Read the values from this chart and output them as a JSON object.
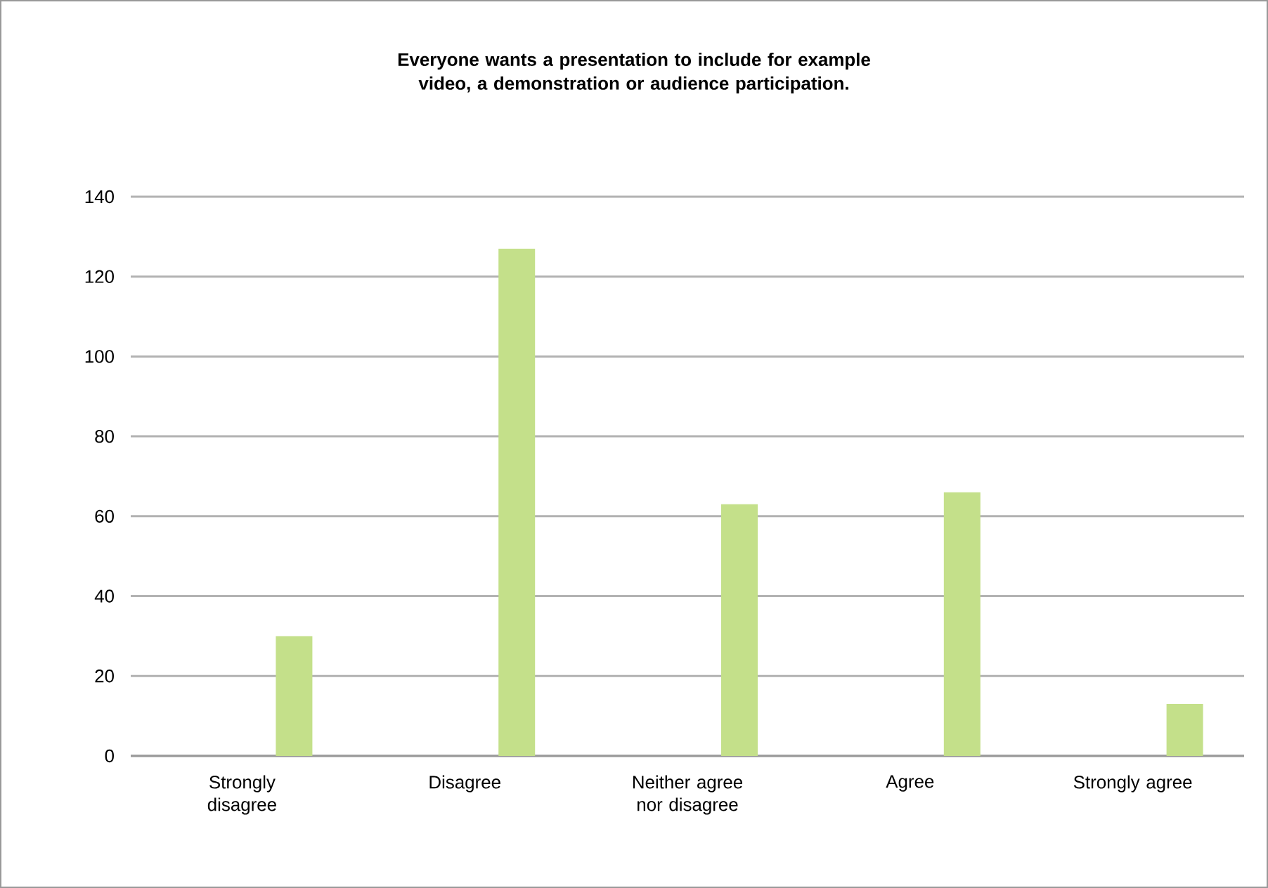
{
  "chart_data": {
    "type": "bar",
    "title": "Everyone wants a presentation to include for example video, a demonstration or audience participation.",
    "categories": [
      "Strongly disagree",
      "Disagree",
      "Neither agree nor disagree",
      "Agree",
      "Strongly agree"
    ],
    "values": [
      30,
      127,
      63,
      66,
      13
    ],
    "color": "#c4e08a",
    "ylim": [
      0,
      140
    ],
    "yticks": [
      0,
      20,
      40,
      60,
      80,
      100,
      120,
      140
    ],
    "grid": "y"
  }
}
